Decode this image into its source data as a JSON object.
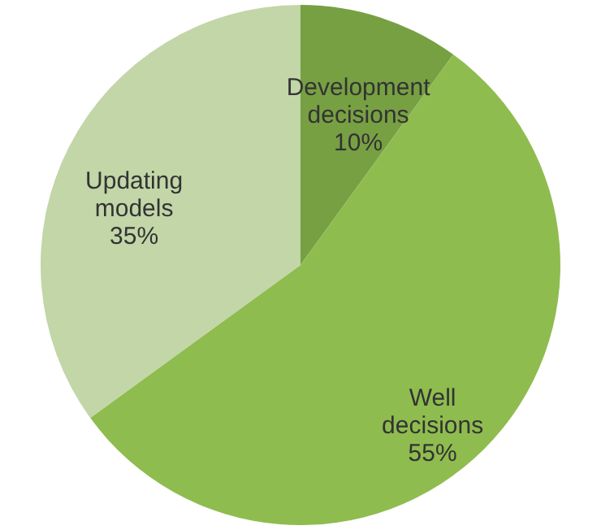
{
  "chart_data": {
    "type": "pie",
    "categories": [
      "Development decisions",
      "Well decisions",
      "Updating models"
    ],
    "values": [
      10,
      55,
      35
    ],
    "colors": [
      "#77a043",
      "#8fbc4f",
      "#c2d6a8"
    ],
    "value_labels": [
      "10%",
      "55%",
      "35%"
    ]
  }
}
